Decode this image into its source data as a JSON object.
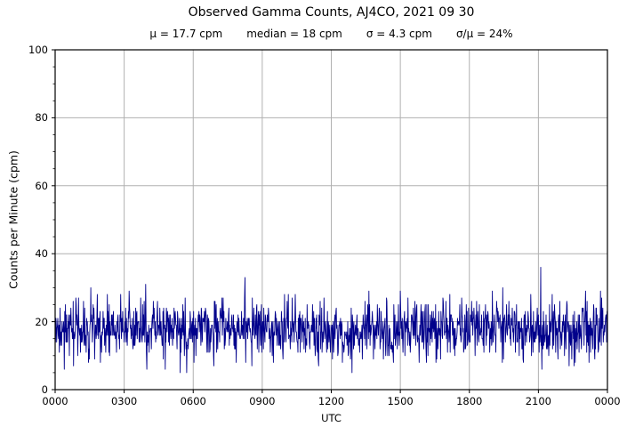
{
  "chart_data": {
    "type": "line",
    "title": "Observed Gamma Counts, AJ4CO, 2021 09 30",
    "stats": [
      "μ = 17.7 cpm",
      "median = 18 cpm",
      "σ = 4.3 cpm",
      "σ/μ = 24%"
    ],
    "xlabel": "UTC",
    "ylabel": "Counts per Minute (cpm)",
    "x_tick_labels": [
      "0000",
      "0300",
      "0600",
      "0900",
      "1200",
      "1500",
      "1800",
      "2100",
      "0000"
    ],
    "x_range_hours": 24,
    "y_ticks": [
      0,
      20,
      40,
      60,
      80,
      100
    ],
    "y_tick_labels": [
      "0",
      "20",
      "40",
      "60",
      "80",
      "100"
    ],
    "y_minor_step": 5,
    "ylim": [
      0,
      100
    ],
    "grid": true,
    "legend": "none",
    "colors": {
      "line": "#00008b",
      "grid": "#b0b0b0",
      "axis": "#000000",
      "background": "#ffffff",
      "text": "#000000"
    },
    "series": {
      "name": "Observed gamma counts",
      "sample_interval_minutes": 1,
      "n_points": 1441,
      "mean_cpm": 17.7,
      "median_cpm": 18,
      "sigma_cpm": 4.3,
      "sigma_over_mu_pct": 24,
      "observed_min_cpm": 5,
      "observed_max_cpm": 36,
      "distribution": "gaussian_noise",
      "seed": 20210930,
      "clamp": [
        5,
        31
      ],
      "notable_peaks": [
        {
          "utc": "0133",
          "cpm": 30
        },
        {
          "utc": "0815",
          "cpm": 33
        },
        {
          "utc": "2106",
          "cpm": 36
        }
      ]
    }
  }
}
